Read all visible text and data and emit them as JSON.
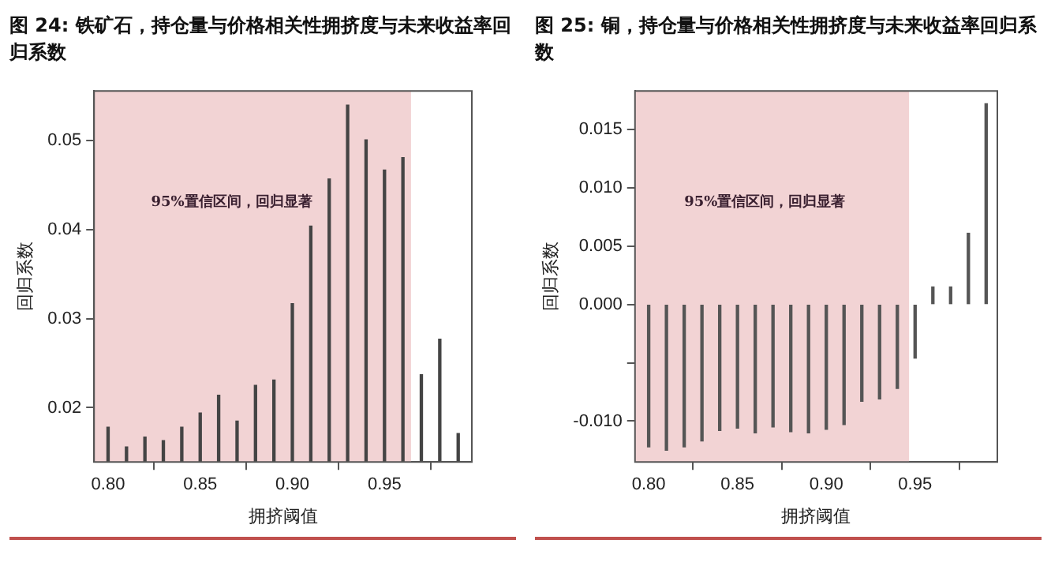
{
  "chart_data": [
    {
      "type": "bar",
      "title": "图 24: 铁矿石，持仓量与价格相关性拥挤度与未来收益率回归系数",
      "xlabel": "拥挤阈值",
      "ylabel": "回归系数",
      "x": [
        0.8,
        0.81,
        0.82,
        0.83,
        0.84,
        0.85,
        0.86,
        0.87,
        0.88,
        0.89,
        0.9,
        0.91,
        0.92,
        0.93,
        0.94,
        0.95,
        0.96,
        0.97,
        0.98,
        0.99
      ],
      "values": [
        0.0178,
        0.0156,
        0.0167,
        0.0163,
        0.0178,
        0.0194,
        0.0214,
        0.0185,
        0.0225,
        0.0231,
        0.0317,
        0.0404,
        0.0457,
        0.054,
        0.0501,
        0.0467,
        0.0481,
        0.0237,
        0.0277,
        0.0171
      ],
      "color": "#444444",
      "xlim": [
        0.7924,
        0.9974
      ],
      "ylim": [
        0.0139,
        0.0556
      ],
      "xticks": [
        {
          "value": 0.8,
          "label": "0.80"
        },
        {
          "value": 0.85,
          "label": "0.85"
        },
        {
          "value": 0.9,
          "label": "0.90"
        },
        {
          "value": 0.95,
          "label": "0.95"
        }
      ],
      "yticks": [
        0.02,
        0.03,
        0.04,
        0.05
      ],
      "bands": [
        {
          "axis": "x",
          "from": 0.7924,
          "to": 0.9644,
          "label": "95%置信区间，回归显著",
          "color": "#f2d3d4"
        }
      ],
      "grid": false,
      "legend": false
    },
    {
      "type": "bar",
      "title": "图 25: 铜，持仓量与价格相关性拥挤度与未来收益率回归系数",
      "xlabel": "拥挤阈值",
      "ylabel": "回归系数",
      "x": [
        0.8,
        0.81,
        0.82,
        0.83,
        0.84,
        0.85,
        0.86,
        0.87,
        0.88,
        0.89,
        0.9,
        0.91,
        0.92,
        0.93,
        0.94,
        0.95,
        0.96,
        0.97,
        0.98,
        0.99
      ],
      "values": [
        -0.0122,
        -0.0125,
        -0.0122,
        -0.0117,
        -0.0108,
        -0.0106,
        -0.011,
        -0.0105,
        -0.0109,
        -0.011,
        -0.0107,
        -0.0103,
        -0.0083,
        -0.0081,
        -0.0072,
        -0.0046,
        0.0015,
        0.0015,
        0.0061,
        0.0172
      ],
      "color": "#555555",
      "xlim": [
        0.7923,
        0.9963
      ],
      "ylim": [
        -0.0135,
        0.0183
      ],
      "xticks": [
        {
          "value": 0.8,
          "label": "0.80"
        },
        {
          "value": 0.85,
          "label": "0.85"
        },
        {
          "value": 0.9,
          "label": "0.90"
        },
        {
          "value": 0.95,
          "label": "0.95"
        }
      ],
      "yticks": [
        {
          "value": -0.01,
          "label": "-0.010"
        },
        {
          "value": -0.005,
          "label": null
        },
        {
          "value": 0,
          "label": "0.000"
        },
        {
          "value": 0.005,
          "label": "0.005"
        },
        {
          "value": 0.01,
          "label": "0.010"
        },
        {
          "value": 0.015,
          "label": "0.015"
        }
      ],
      "bands": [
        {
          "axis": "x",
          "from": 0.7923,
          "to": 0.9466,
          "label": "95%置信区间，回归显著",
          "color": "#f2d3d4"
        }
      ],
      "grid": false,
      "legend": false
    }
  ]
}
